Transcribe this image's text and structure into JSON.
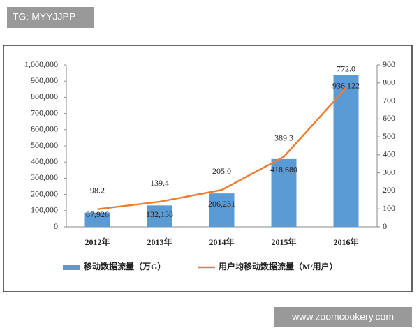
{
  "overlay": {
    "tag": "TG: MYYJJPP",
    "site": "www.zoomcookery.com"
  },
  "chart_data": {
    "type": "bar-line",
    "categories": [
      "2012年",
      "2013年",
      "2014年",
      "2015年",
      "2016年"
    ],
    "series": [
      {
        "name": "移动数据流量（万G）",
        "type": "bar",
        "color": "#5b9bd5",
        "values": [
          87926,
          132138,
          206231,
          418680,
          936122
        ],
        "value_labels": [
          "87,926",
          "132,138",
          "206,231",
          "418,680",
          "936,122"
        ]
      },
      {
        "name": "用户均移动数据流量（M/用户）",
        "type": "line",
        "axis": "y2",
        "color": "#ed7d31",
        "values": [
          98.2,
          139.4,
          205.0,
          389.3,
          772.0
        ],
        "value_labels": [
          "98.2",
          "139.4",
          "205.0",
          "389.3",
          "772.0"
        ]
      }
    ],
    "ylim": [
      0,
      1000000
    ],
    "yticks": [
      0,
      {
        "value": 100000,
        "label": "100,000"
      },
      {
        "value": 200000,
        "label": "200,000"
      },
      {
        "value": 300000,
        "label": "300,000"
      },
      {
        "value": 400000,
        "label": "400,000"
      },
      {
        "value": 500000,
        "label": "500,000"
      },
      {
        "value": 600000,
        "label": "600,000"
      },
      {
        "value": 700000,
        "label": "700,000"
      },
      {
        "value": 800000,
        "label": "800,000"
      },
      {
        "value": 900000,
        "label": "900,000"
      },
      {
        "value": 1000000,
        "label": "1,000,000"
      }
    ],
    "y2lim": [
      0,
      900
    ],
    "y2ticks": [
      0,
      100,
      200,
      300,
      400,
      500,
      600,
      700,
      800,
      900
    ],
    "legend": "bottom"
  }
}
